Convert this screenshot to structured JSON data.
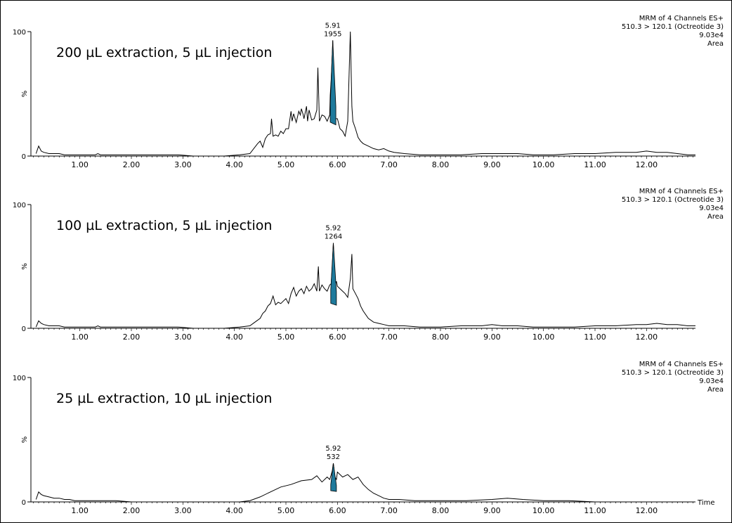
{
  "chart_data": [
    {
      "type": "line",
      "title": "200 µL extraction, 5 µL injection",
      "info": [
        "MRM of 4 Channels ES+",
        "510.3 > 120.1 (Octreotide 3)",
        "9.03e4",
        "Area"
      ],
      "xlabel": "",
      "ylabel": "%",
      "xlim": [
        0.05,
        12.95
      ],
      "ylim": [
        0,
        100
      ],
      "yticks": [
        "0",
        "100"
      ],
      "xticks": [
        "1.00",
        "2.00",
        "3.00",
        "4.00",
        "5.00",
        "6.00",
        "7.00",
        "8.00",
        "9.00",
        "10.00",
        "11.00",
        "12.00"
      ],
      "peak": {
        "rt": "5.91",
        "area": "1955",
        "x": 5.91,
        "y": 93,
        "x_start": 5.86,
        "x_end": 5.97
      },
      "series": [
        {
          "x": [
            0.15,
            0.2,
            0.25,
            0.3,
            0.4,
            0.5,
            0.6,
            0.7,
            0.8,
            0.9,
            1.0,
            1.1,
            1.2,
            1.3,
            1.35,
            1.4,
            1.5,
            1.7,
            2.0,
            2.3,
            2.6,
            2.9,
            3.2,
            3.5,
            3.8,
            4.1,
            4.3,
            4.45,
            4.5,
            4.55,
            4.6,
            4.65,
            4.7,
            4.72,
            4.75,
            4.8,
            4.85,
            4.9,
            4.95,
            5.0,
            5.05,
            5.1,
            5.12,
            5.15,
            5.2,
            5.25,
            5.28,
            5.3,
            5.33,
            5.35,
            5.4,
            5.42,
            5.45,
            5.5,
            5.55,
            5.6,
            5.62,
            5.65,
            5.7,
            5.75,
            5.8,
            5.85,
            5.86,
            5.88,
            5.9,
            5.91,
            5.93,
            5.95,
            5.97,
            6.0,
            6.05,
            6.1,
            6.15,
            6.2,
            6.25,
            6.28,
            6.3,
            6.35,
            6.4,
            6.45,
            6.5,
            6.6,
            6.7,
            6.8,
            6.9,
            7.0,
            7.1,
            7.3,
            7.6,
            8.0,
            8.4,
            8.8,
            9.0,
            9.2,
            9.5,
            9.8,
            10.2,
            10.6,
            11.0,
            11.4,
            11.8,
            12.0,
            12.2,
            12.4,
            12.6,
            12.8,
            12.95
          ],
          "y": [
            2,
            8,
            4,
            3,
            2,
            2,
            2,
            1,
            1,
            1,
            1,
            1,
            1,
            1,
            2,
            1,
            1,
            1,
            1,
            1,
            1,
            1,
            0,
            0,
            0,
            1,
            2,
            10,
            12,
            7,
            14,
            17,
            18,
            30,
            16,
            17,
            16,
            20,
            18,
            22,
            22,
            36,
            28,
            34,
            27,
            36,
            33,
            38,
            34,
            30,
            40,
            28,
            37,
            29,
            30,
            37,
            71,
            28,
            33,
            32,
            28,
            33,
            49,
            62,
            82,
            93,
            40,
            36,
            30,
            30,
            22,
            20,
            16,
            28,
            100,
            40,
            28,
            22,
            15,
            12,
            10,
            8,
            6,
            5,
            6,
            4,
            3,
            2,
            1,
            1,
            1,
            2,
            2,
            2,
            2,
            1,
            1,
            2,
            2,
            3,
            3,
            4,
            3,
            3,
            2,
            1,
            1
          ]
        }
      ]
    },
    {
      "type": "line",
      "title": "100 µL extraction, 5 µL injection",
      "info": [
        "MRM of 4 Channels ES+",
        "510.3 > 120.1 (Octreotide 3)",
        "9.03e4",
        "Area"
      ],
      "xlabel": "",
      "ylabel": "%",
      "xlim": [
        0.05,
        12.95
      ],
      "ylim": [
        0,
        100
      ],
      "yticks": [
        "0",
        "100"
      ],
      "xticks": [
        "1.00",
        "2.00",
        "3.00",
        "4.00",
        "5.00",
        "6.00",
        "7.00",
        "8.00",
        "9.00",
        "10.00",
        "11.00",
        "12.00"
      ],
      "peak": {
        "rt": "5.92",
        "area": "1264",
        "x": 5.92,
        "y": 69,
        "x_start": 5.87,
        "x_end": 5.98
      },
      "series": [
        {
          "x": [
            0.15,
            0.2,
            0.25,
            0.3,
            0.4,
            0.5,
            0.6,
            0.7,
            0.8,
            0.9,
            1.0,
            1.1,
            1.2,
            1.3,
            1.35,
            1.4,
            1.5,
            1.7,
            2.0,
            2.3,
            2.6,
            2.9,
            3.2,
            3.5,
            3.8,
            4.1,
            4.3,
            4.4,
            4.5,
            4.55,
            4.6,
            4.65,
            4.7,
            4.75,
            4.8,
            4.85,
            4.9,
            4.95,
            5.0,
            5.05,
            5.1,
            5.15,
            5.2,
            5.25,
            5.3,
            5.35,
            5.4,
            5.45,
            5.5,
            5.55,
            5.6,
            5.63,
            5.65,
            5.7,
            5.75,
            5.8,
            5.85,
            5.88,
            5.9,
            5.92,
            5.95,
            5.98,
            6.0,
            6.05,
            6.1,
            6.15,
            6.2,
            6.25,
            6.28,
            6.3,
            6.35,
            6.4,
            6.45,
            6.5,
            6.6,
            6.7,
            6.8,
            6.9,
            7.0,
            7.1,
            7.3,
            7.6,
            8.0,
            8.4,
            8.8,
            9.0,
            9.2,
            9.5,
            9.8,
            10.2,
            10.6,
            11.0,
            11.4,
            11.8,
            12.0,
            12.2,
            12.4,
            12.6,
            12.8,
            12.95
          ],
          "y": [
            1,
            6,
            4,
            3,
            2,
            2,
            2,
            1,
            1,
            1,
            1,
            1,
            1,
            1,
            2,
            1,
            1,
            1,
            1,
            1,
            1,
            1,
            0,
            0,
            0,
            1,
            2,
            5,
            8,
            12,
            14,
            18,
            20,
            26,
            19,
            21,
            20,
            22,
            24,
            20,
            28,
            33,
            26,
            30,
            32,
            28,
            34,
            30,
            32,
            36,
            30,
            50,
            30,
            35,
            32,
            30,
            35,
            36,
            50,
            69,
            34,
            38,
            34,
            32,
            30,
            28,
            25,
            40,
            60,
            32,
            28,
            24,
            18,
            14,
            8,
            5,
            4,
            3,
            2,
            2,
            2,
            1,
            1,
            2,
            2,
            3,
            2,
            2,
            1,
            1,
            1,
            2,
            2,
            3,
            3,
            4,
            3,
            3,
            2,
            2
          ]
        }
      ]
    },
    {
      "type": "line",
      "title": "25 µL extraction, 10 µL injection",
      "info": [
        "MRM of 4 Channels ES+",
        "510.3 > 120.1 (Octreotide 3)",
        "9.03e4",
        "Area"
      ],
      "xlabel": "Time",
      "ylabel": "%",
      "xlim": [
        0.05,
        12.95
      ],
      "ylim": [
        0,
        100
      ],
      "yticks": [
        "0",
        "100"
      ],
      "xticks": [
        "1.00",
        "2.00",
        "3.00",
        "4.00",
        "5.00",
        "6.00",
        "7.00",
        "8.00",
        "9.00",
        "10.00",
        "11.00",
        "12.00"
      ],
      "peak": {
        "rt": "5.92",
        "area": "532",
        "x": 5.92,
        "y": 31,
        "x_start": 5.87,
        "x_end": 5.98
      },
      "series": [
        {
          "x": [
            0.15,
            0.2,
            0.25,
            0.3,
            0.4,
            0.5,
            0.6,
            0.7,
            0.8,
            0.9,
            1.0,
            1.1,
            1.2,
            1.3,
            1.4,
            1.5,
            1.7,
            2.0,
            2.3,
            2.6,
            2.9,
            3.2,
            3.5,
            3.8,
            4.1,
            4.3,
            4.5,
            4.7,
            4.9,
            5.1,
            5.3,
            5.5,
            5.6,
            5.7,
            5.8,
            5.85,
            5.88,
            5.9,
            5.92,
            5.95,
            5.98,
            6.0,
            6.1,
            6.2,
            6.3,
            6.4,
            6.5,
            6.6,
            6.7,
            6.8,
            6.9,
            7.0,
            7.2,
            7.5,
            8.0,
            8.5,
            9.0,
            9.3,
            9.6,
            10.0,
            10.5,
            11.0,
            11.5,
            12.0,
            12.5,
            12.95
          ],
          "y": [
            2,
            8,
            6,
            5,
            4,
            3,
            3,
            2,
            2,
            1,
            1,
            1,
            1,
            1,
            1,
            1,
            1,
            0,
            0,
            0,
            0,
            0,
            0,
            0,
            0,
            1,
            4,
            8,
            12,
            14,
            17,
            18,
            21,
            16,
            20,
            18,
            22,
            25,
            31,
            20,
            18,
            24,
            20,
            22,
            18,
            20,
            14,
            10,
            7,
            5,
            3,
            2,
            2,
            1,
            1,
            1,
            2,
            3,
            2,
            1,
            1,
            0,
            0,
            0,
            0,
            0
          ]
        }
      ]
    }
  ]
}
